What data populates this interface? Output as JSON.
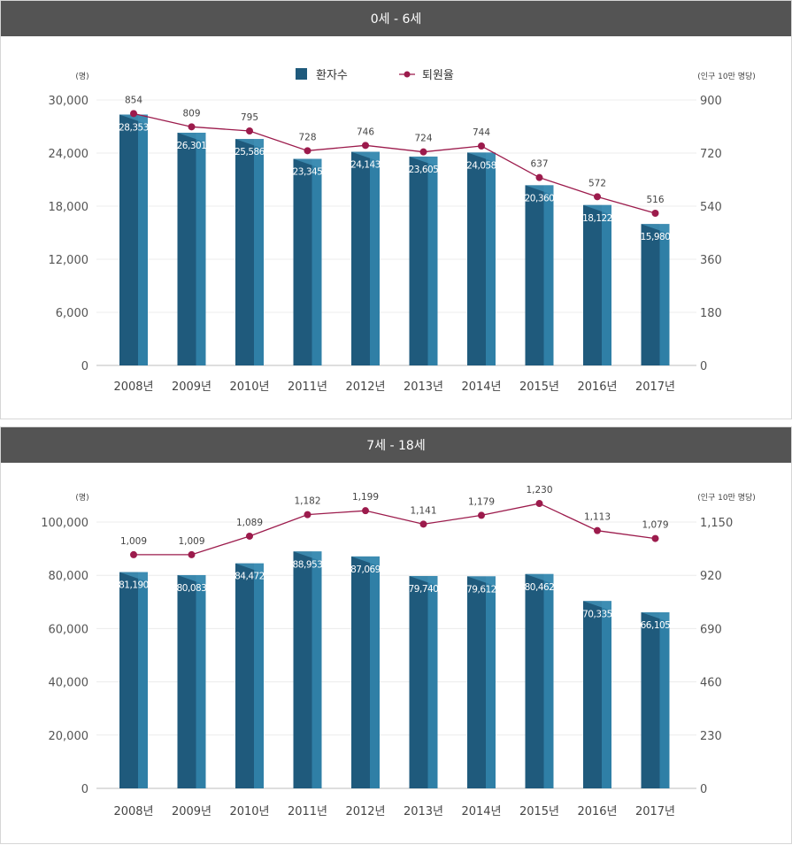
{
  "charts": [
    {
      "header": "0세 - 6세",
      "legend": {
        "bar": "환자수",
        "line": "퇴원율"
      },
      "left_unit": "(명)",
      "right_unit": "(인구 10만 명당)",
      "colors": {
        "bar_front": "#1f5a7c",
        "bar_side": "#2f7fa6",
        "line": "#9c1b4c"
      },
      "chart_data": {
        "type": "bar+line",
        "categories": [
          "2008년",
          "2009년",
          "2010년",
          "2011년",
          "2012년",
          "2013년",
          "2014년",
          "2015년",
          "2016년",
          "2017년"
        ],
        "series": [
          {
            "name": "환자수",
            "axis": "left",
            "values": [
              28353,
              26301,
              25586,
              23345,
              24143,
              23605,
              24058,
              20360,
              18122,
              15980
            ],
            "labels": [
              "28,353",
              "26,301",
              "25,586",
              "23,345",
              "24,143",
              "23,605",
              "24,058",
              "20,360",
              "18,122",
              "15,980"
            ]
          },
          {
            "name": "퇴원율",
            "axis": "right",
            "values": [
              854,
              809,
              795,
              728,
              746,
              724,
              744,
              637,
              572,
              516
            ],
            "labels": [
              "854",
              "809",
              "795",
              "728",
              "746",
              "724",
              "744",
              "637",
              "572",
              "516"
            ]
          }
        ],
        "left_ticks": [
          "0",
          "6,000",
          "12,000",
          "18,000",
          "24,000",
          "30,000"
        ],
        "right_ticks": [
          "0",
          "180",
          "360",
          "540",
          "720",
          "900"
        ],
        "ylim_left": [
          0,
          30000
        ],
        "ylim_right": [
          0,
          900
        ]
      }
    },
    {
      "header": "7세 - 18세",
      "left_unit": "(명)",
      "right_unit": "(인구 10만 명당)",
      "colors": {
        "bar_front": "#1f5a7c",
        "bar_side": "#2f7fa6",
        "line": "#9c1b4c"
      },
      "chart_data": {
        "type": "bar+line",
        "categories": [
          "2008년",
          "2009년",
          "2010년",
          "2011년",
          "2012년",
          "2013년",
          "2014년",
          "2015년",
          "2016년",
          "2017년"
        ],
        "series": [
          {
            "name": "환자수",
            "axis": "left",
            "values": [
              81190,
              80083,
              84472,
              88953,
              87069,
              79740,
              79612,
              80462,
              70335,
              66105
            ],
            "labels": [
              "81,190",
              "80,083",
              "84,472",
              "88,953",
              "87,069",
              "79,740",
              "79,612",
              "80,462",
              "70,335",
              "66,105"
            ]
          },
          {
            "name": "퇴원율",
            "axis": "right",
            "values": [
              1009,
              1009,
              1089,
              1182,
              1199,
              1141,
              1179,
              1230,
              1113,
              1079
            ],
            "labels": [
              "1,009",
              "1,009",
              "1,089",
              "1,182",
              "1,199",
              "1,141",
              "1,179",
              "1,230",
              "1,113",
              "1,079"
            ]
          }
        ],
        "left_ticks": [
          "0",
          "20,000",
          "40,000",
          "60,000",
          "80,000",
          "100,000"
        ],
        "right_ticks": [
          "0",
          "230",
          "460",
          "690",
          "920",
          "1,150"
        ],
        "ylim_left": [
          0,
          100000
        ],
        "ylim_right": [
          0,
          1150
        ]
      }
    }
  ]
}
